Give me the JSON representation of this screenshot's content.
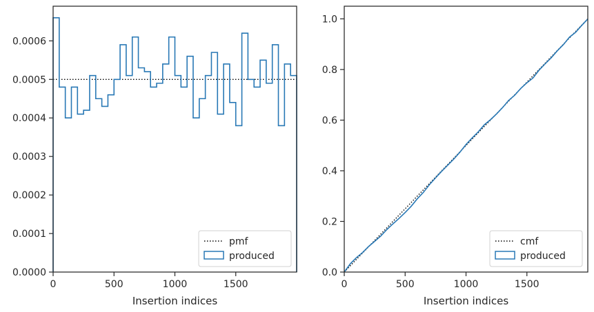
{
  "chart_data": [
    {
      "type": "histogram-step",
      "xlabel": "Insertion indices",
      "ylabel": "",
      "xlim": [
        0,
        2000
      ],
      "ylim": [
        0,
        0.00069
      ],
      "xticks": [
        0,
        500,
        1000,
        1500
      ],
      "yticks": [
        0.0,
        0.0001,
        0.0002,
        0.0003,
        0.0004,
        0.0005,
        0.0006
      ],
      "ytick_labels": [
        "0.0000",
        "0.0001",
        "0.0002",
        "0.0003",
        "0.0004",
        "0.0005",
        "0.0006"
      ],
      "legend_position": "lower-right",
      "legend": [
        "pmf",
        "produced"
      ],
      "series": [
        {
          "name": "pmf",
          "style": "dotted",
          "color": "#000000",
          "x": [
            0,
            2000
          ],
          "y": [
            0.0005,
            0.0005
          ]
        },
        {
          "name": "produced",
          "style": "step",
          "color": "#2878b5",
          "bin_edges": [
            0,
            50,
            100,
            150,
            200,
            250,
            300,
            350,
            400,
            450,
            500,
            550,
            600,
            650,
            700,
            750,
            800,
            850,
            900,
            950,
            1000,
            1050,
            1100,
            1150,
            1200,
            1250,
            1300,
            1350,
            1400,
            1450,
            1500,
            1550,
            1600,
            1650,
            1700,
            1750,
            1800,
            1850,
            1900,
            1950,
            2000
          ],
          "values": [
            0.00066,
            0.00048,
            0.0004,
            0.00048,
            0.00041,
            0.00042,
            0.00051,
            0.00045,
            0.00043,
            0.00046,
            0.0005,
            0.00059,
            0.00051,
            0.00061,
            0.00053,
            0.00052,
            0.00048,
            0.00049,
            0.00054,
            0.00061,
            0.00051,
            0.00048,
            0.00056,
            0.0004,
            0.00045,
            0.00051,
            0.00057,
            0.00041,
            0.00054,
            0.00044,
            0.00038,
            0.00062,
            0.0005,
            0.00048,
            0.00055,
            0.00049,
            0.00059,
            0.00038,
            0.00054,
            0.00051
          ]
        }
      ]
    },
    {
      "type": "line",
      "xlabel": "Insertion indices",
      "ylabel": "",
      "xlim": [
        0,
        2000
      ],
      "ylim": [
        0,
        1.05
      ],
      "xticks": [
        0,
        500,
        1000,
        1500
      ],
      "yticks": [
        0.0,
        0.2,
        0.4,
        0.6,
        0.8,
        1.0
      ],
      "ytick_labels": [
        "0.0",
        "0.2",
        "0.4",
        "0.6",
        "0.8",
        "1.0"
      ],
      "legend_position": "lower-right",
      "legend": [
        "cmf",
        "produced"
      ],
      "series": [
        {
          "name": "cmf",
          "style": "dotted",
          "color": "#000000",
          "x": [
            0,
            2000
          ],
          "y": [
            0,
            1.0
          ]
        },
        {
          "name": "produced",
          "style": "step",
          "color": "#2878b5",
          "x": [
            0,
            50,
            100,
            150,
            200,
            250,
            300,
            350,
            400,
            450,
            500,
            550,
            600,
            650,
            700,
            750,
            800,
            850,
            900,
            950,
            1000,
            1050,
            1100,
            1150,
            1200,
            1250,
            1300,
            1350,
            1400,
            1450,
            1500,
            1550,
            1600,
            1650,
            1700,
            1750,
            1800,
            1850,
            1900,
            1950,
            2000
          ],
          "y": [
            0.0,
            0.033,
            0.057,
            0.077,
            0.101,
            0.1215,
            0.1425,
            0.168,
            0.1905,
            0.212,
            0.235,
            0.26,
            0.2895,
            0.315,
            0.3455,
            0.372,
            0.398,
            0.422,
            0.4465,
            0.4735,
            0.504,
            0.5295,
            0.5535,
            0.5815,
            0.6015,
            0.624,
            0.6495,
            0.678,
            0.6985,
            0.7255,
            0.7475,
            0.7665,
            0.7975,
            0.8225,
            0.8465,
            0.874,
            0.8985,
            0.928,
            0.947,
            0.974,
            0.9995
          ]
        }
      ]
    }
  ]
}
